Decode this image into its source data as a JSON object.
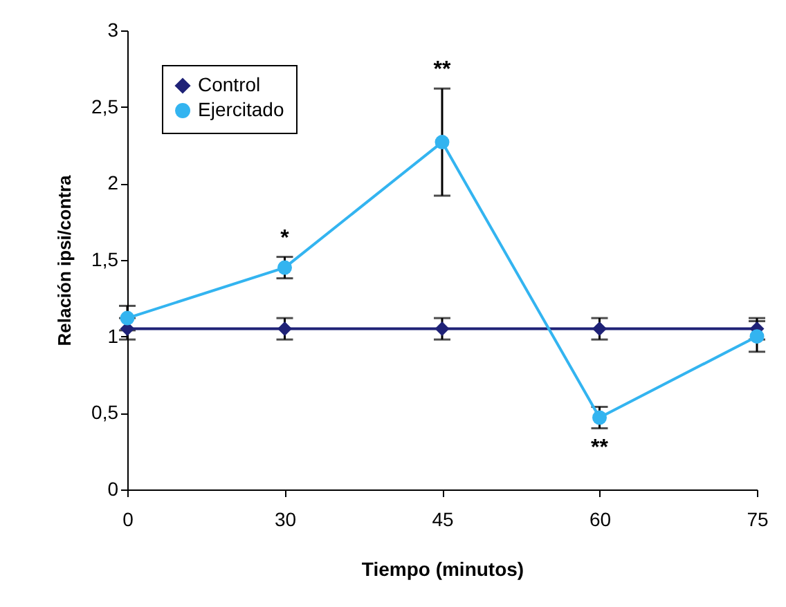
{
  "chart_data": {
    "type": "line",
    "xlabel": "Tiempo (minutos)",
    "ylabel": "Relación ipsi/contra",
    "categories": [
      "0",
      "30",
      "45",
      "60",
      "75"
    ],
    "series": [
      {
        "name": "Control",
        "color": "#1f2277",
        "marker": "diamond",
        "values": [
          1.05,
          1.05,
          1.05,
          1.05,
          1.05
        ],
        "errors": [
          0.07,
          0.07,
          0.07,
          0.07,
          0.07
        ]
      },
      {
        "name": "Ejercitado",
        "color": "#33b4f0",
        "marker": "circle",
        "values": [
          1.12,
          1.45,
          2.27,
          0.47,
          1.0
        ],
        "errors": [
          0.08,
          0.07,
          0.35,
          0.07,
          0.1
        ]
      }
    ],
    "ylim": [
      0,
      3
    ],
    "yticks": [
      0,
      {
        "value": 0.5,
        "label": "0,5"
      },
      1,
      {
        "value": 1.5,
        "label": "1,5"
      },
      2,
      {
        "value": 2.5,
        "label": "2,5"
      },
      3
    ],
    "annotations": [
      {
        "text": "*",
        "x": "30",
        "y": 1.45
      },
      {
        "text": "**",
        "x": "45",
        "y": 2.27
      },
      {
        "text": "**",
        "x": "60",
        "y": 0.47
      }
    ],
    "legend": "top left",
    "grid": false
  }
}
